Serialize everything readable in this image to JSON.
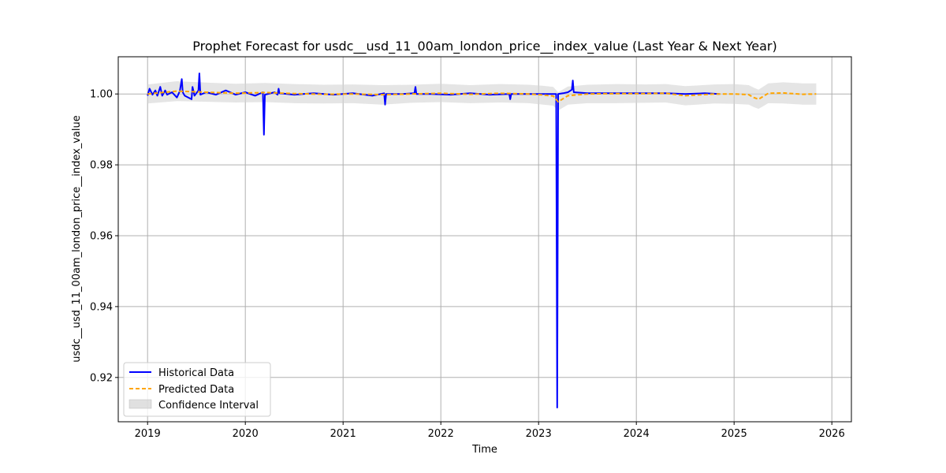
{
  "chart_data": {
    "type": "line",
    "title": "Prophet Forecast for usdc__usd_11_00am_london_price__index_value (Last Year & Next Year)",
    "xlabel": "Time",
    "ylabel": "usdc__usd_11_00am_london_price__index_value",
    "xlim": [
      2018.7,
      2026.2
    ],
    "ylim": [
      0.9075,
      1.0105
    ],
    "x_ticks": [
      2019,
      2020,
      2021,
      2022,
      2023,
      2024,
      2025,
      2026
    ],
    "x_tick_labels": [
      "2019",
      "2020",
      "2021",
      "2022",
      "2023",
      "2024",
      "2025",
      "2026"
    ],
    "y_ticks": [
      0.92,
      0.94,
      0.96,
      0.98,
      1.0
    ],
    "y_tick_labels": [
      "0.92",
      "0.94",
      "0.96",
      "0.98",
      "1.00"
    ],
    "grid": true,
    "legend_position": "lower-left",
    "series": [
      {
        "name": "Historical Data",
        "style": "solid",
        "color": "#0000ff",
        "x": [
          2019.0,
          2019.02,
          2019.05,
          2019.08,
          2019.1,
          2019.13,
          2019.15,
          2019.18,
          2019.2,
          2019.25,
          2019.3,
          2019.33,
          2019.35,
          2019.36,
          2019.38,
          2019.45,
          2019.46,
          2019.48,
          2019.52,
          2019.53,
          2019.54,
          2019.6,
          2019.7,
          2019.8,
          2019.9,
          2020.0,
          2020.1,
          2020.18,
          2020.19,
          2020.2,
          2020.3,
          2020.33,
          2020.34,
          2020.35,
          2020.5,
          2020.7,
          2020.9,
          2021.1,
          2021.3,
          2021.42,
          2021.43,
          2021.44,
          2021.6,
          2021.73,
          2021.74,
          2021.75,
          2021.9,
          2022.1,
          2022.3,
          2022.5,
          2022.7,
          2022.71,
          2022.72,
          2022.9,
          2023.1,
          2023.18,
          2023.19,
          2023.2,
          2023.25,
          2023.3,
          2023.34,
          2023.35,
          2023.36,
          2023.5,
          2023.7,
          2023.9,
          2024.1,
          2024.3,
          2024.5,
          2024.7,
          2024.85
        ],
        "y": [
          0.9995,
          1.0015,
          0.9998,
          1.001,
          0.9995,
          1.002,
          0.9995,
          1.001,
          0.9998,
          1.0005,
          0.999,
          1.0008,
          1.0042,
          1.0005,
          0.9995,
          0.9985,
          1.002,
          0.9995,
          1.001,
          1.0058,
          0.9998,
          1.0005,
          0.9998,
          1.001,
          0.9998,
          1.0005,
          0.9995,
          1.0005,
          0.9885,
          0.9998,
          1.0005,
          0.9998,
          1.0015,
          1.0002,
          0.9998,
          1.0002,
          0.9998,
          1.0002,
          0.9995,
          1.0002,
          0.997,
          1.0,
          1.0,
          1.0002,
          1.002,
          1.0,
          1.0,
          0.9998,
          1.0002,
          0.9998,
          1.0,
          0.9985,
          1.0,
          1.0,
          1.0,
          1.0,
          0.9115,
          1.0,
          1.0002,
          1.0005,
          1.0012,
          1.0038,
          1.0005,
          1.0002,
          1.0002,
          1.0002,
          1.0002,
          1.0002,
          1.0,
          1.0002,
          1.0
        ]
      },
      {
        "name": "Predicted Data",
        "style": "dashed",
        "color": "#ffa500",
        "x": [
          2019.0,
          2019.3,
          2019.6,
          2019.9,
          2020.2,
          2020.5,
          2020.8,
          2021.1,
          2021.4,
          2021.7,
          2022.0,
          2022.3,
          2022.6,
          2022.9,
          2023.05,
          2023.15,
          2023.2,
          2023.3,
          2023.5,
          2023.8,
          2024.1,
          2024.3,
          2024.5,
          2024.8,
          2025.0,
          2025.15,
          2025.2,
          2025.25,
          2025.35,
          2025.5,
          2025.7,
          2025.84
        ],
        "y": [
          1.0,
          1.0008,
          1.0005,
          1.0002,
          1.0004,
          1.0001,
          0.9999,
          1.0,
          0.9998,
          1.0,
          1.0002,
          0.9999,
          1.0002,
          1.0,
          0.9997,
          0.9994,
          0.9978,
          0.9995,
          1.0,
          1.0001,
          1.0001,
          1.0002,
          0.9995,
          1.0,
          1.0,
          0.9998,
          0.999,
          0.9985,
          1.0002,
          1.0003,
          0.9999,
          1.0
        ]
      }
    ],
    "confidence_interval": {
      "name": "Confidence Interval",
      "color": "#d3d3d3",
      "x": [
        2019.0,
        2019.3,
        2019.6,
        2019.9,
        2020.2,
        2020.5,
        2020.8,
        2021.1,
        2021.4,
        2021.7,
        2022.0,
        2022.3,
        2022.6,
        2022.9,
        2023.05,
        2023.15,
        2023.2,
        2023.3,
        2023.5,
        2023.8,
        2024.1,
        2024.3,
        2024.5,
        2024.8,
        2025.0,
        2025.15,
        2025.2,
        2025.25,
        2025.35,
        2025.5,
        2025.7,
        2025.84
      ],
      "lower": [
        0.9973,
        0.998,
        0.9978,
        0.9976,
        0.9977,
        0.9974,
        0.9973,
        0.9974,
        0.997,
        0.9975,
        0.9977,
        0.9974,
        0.9976,
        0.9974,
        0.997,
        0.9967,
        0.9953,
        0.997,
        0.9974,
        0.9974,
        0.9975,
        0.9976,
        0.9968,
        0.9973,
        0.9972,
        0.997,
        0.9963,
        0.9958,
        0.9974,
        0.9973,
        0.997,
        0.997
      ],
      "upper": [
        1.0027,
        1.0036,
        1.0032,
        1.0029,
        1.0031,
        1.0028,
        1.0026,
        1.0027,
        1.0025,
        1.0026,
        1.0029,
        1.0025,
        1.0028,
        1.0026,
        1.0023,
        1.002,
        1.0005,
        1.0021,
        1.0026,
        1.0028,
        1.0027,
        1.0028,
        1.0022,
        1.0027,
        1.0028,
        1.0025,
        1.0018,
        1.0012,
        1.003,
        1.0033,
        1.003,
        1.003
      ]
    }
  }
}
